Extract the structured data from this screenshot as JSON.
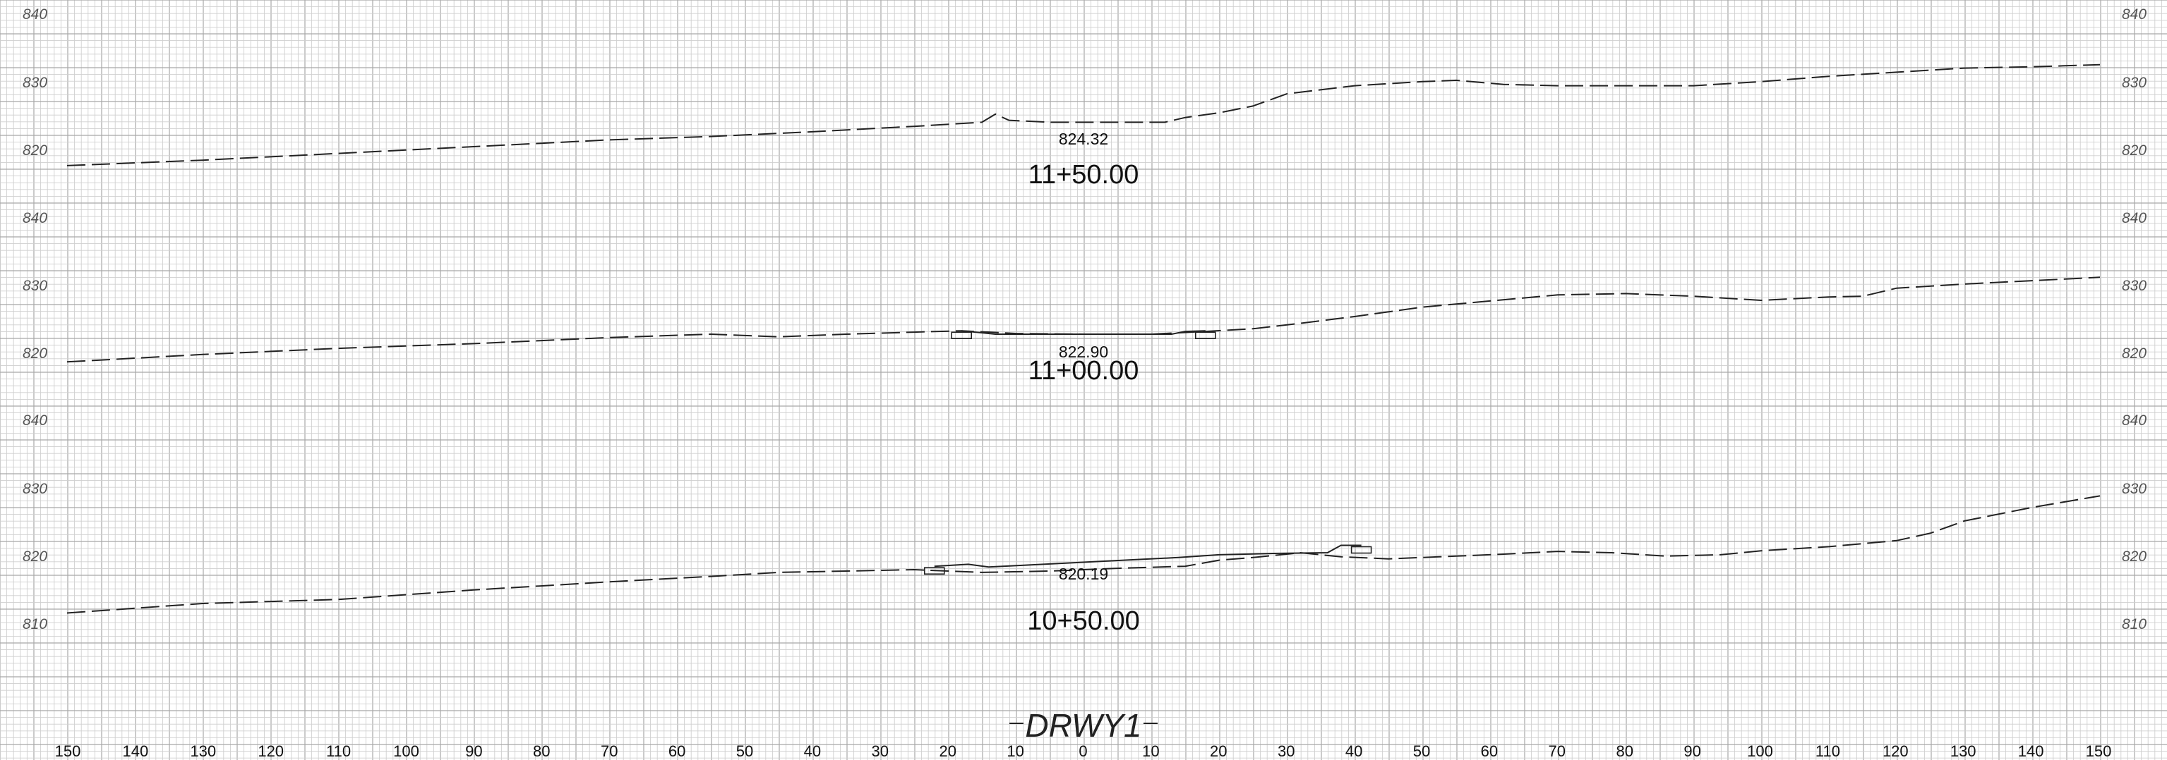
{
  "drawing": {
    "title": "DRWY1"
  },
  "offset_axis": {
    "labels": [
      "150",
      "140",
      "130",
      "120",
      "110",
      "100",
      "90",
      "80",
      "70",
      "60",
      "50",
      "40",
      "30",
      "20",
      "10",
      "0",
      "10",
      "20",
      "30",
      "40",
      "50",
      "60",
      "70",
      "80",
      "90",
      "100",
      "110",
      "120",
      "130",
      "140",
      "150"
    ]
  },
  "sections": [
    {
      "station": "11+50.00",
      "grade_elevation": "824.32",
      "elevation_labels": [
        "840",
        "830",
        "820"
      ],
      "ground_profile": [
        [
          -150,
          817.2
        ],
        [
          -130,
          818.0
        ],
        [
          -110,
          819.0
        ],
        [
          -90,
          820.0
        ],
        [
          -70,
          821.0
        ],
        [
          -55,
          821.5
        ],
        [
          -40,
          822.2
        ],
        [
          -25,
          823.0
        ],
        [
          -15,
          823.6
        ],
        [
          -13,
          824.8
        ],
        [
          -11,
          823.9
        ],
        [
          -5,
          823.6
        ],
        [
          5,
          823.6
        ],
        [
          12,
          823.6
        ],
        [
          15,
          824.3
        ],
        [
          20,
          825.0
        ],
        [
          25,
          826.0
        ],
        [
          30,
          827.8
        ],
        [
          40,
          829.0
        ],
        [
          50,
          829.6
        ],
        [
          55,
          829.8
        ],
        [
          62,
          829.2
        ],
        [
          70,
          829.0
        ],
        [
          80,
          829.0
        ],
        [
          90,
          829.0
        ],
        [
          100,
          829.6
        ],
        [
          110,
          830.4
        ],
        [
          120,
          831.0
        ],
        [
          130,
          831.6
        ],
        [
          140,
          831.8
        ],
        [
          150,
          832.1
        ]
      ],
      "design_profile": []
    },
    {
      "station": "11+00.00",
      "grade_elevation": "822.90",
      "elevation_labels": [
        "840",
        "830",
        "820"
      ],
      "ground_profile": [
        [
          -150,
          818.3
        ],
        [
          -130,
          819.4
        ],
        [
          -110,
          820.3
        ],
        [
          -90,
          821.0
        ],
        [
          -70,
          821.9
        ],
        [
          -55,
          822.4
        ],
        [
          -45,
          822.0
        ],
        [
          -35,
          822.4
        ],
        [
          -25,
          822.7
        ],
        [
          -18,
          822.9
        ],
        [
          -10,
          822.5
        ],
        [
          0,
          822.4
        ],
        [
          10,
          822.4
        ],
        [
          18,
          822.8
        ],
        [
          25,
          823.2
        ],
        [
          32,
          824.0
        ],
        [
          40,
          825.0
        ],
        [
          50,
          826.4
        ],
        [
          60,
          827.3
        ],
        [
          70,
          828.2
        ],
        [
          80,
          828.4
        ],
        [
          90,
          828.0
        ],
        [
          100,
          827.4
        ],
        [
          110,
          827.9
        ],
        [
          115,
          828.0
        ],
        [
          120,
          829.2
        ],
        [
          130,
          829.8
        ],
        [
          140,
          830.3
        ],
        [
          150,
          830.8
        ]
      ],
      "design_profile": [
        [
          -18,
          822.9
        ],
        [
          -15,
          822.6
        ],
        [
          -13,
          822.4
        ],
        [
          -8,
          822.4
        ],
        [
          0,
          822.4
        ],
        [
          8,
          822.4
        ],
        [
          13,
          822.4
        ],
        [
          15,
          822.8
        ],
        [
          18,
          822.9
        ]
      ]
    },
    {
      "station": "10+50.00",
      "grade_elevation": "820.19",
      "elevation_labels": [
        "840",
        "830",
        "820",
        "810"
      ],
      "ground_profile": [
        [
          -150,
          811.2
        ],
        [
          -130,
          812.6
        ],
        [
          -110,
          813.2
        ],
        [
          -90,
          814.6
        ],
        [
          -70,
          815.8
        ],
        [
          -55,
          816.6
        ],
        [
          -45,
          817.2
        ],
        [
          -35,
          817.4
        ],
        [
          -25,
          817.6
        ],
        [
          -15,
          817.2
        ],
        [
          -5,
          817.4
        ],
        [
          5,
          817.8
        ],
        [
          15,
          818.1
        ],
        [
          20,
          819.0
        ],
        [
          25,
          819.4
        ],
        [
          32,
          820.1
        ],
        [
          38,
          819.5
        ],
        [
          45,
          819.2
        ],
        [
          55,
          819.6
        ],
        [
          62,
          819.9
        ],
        [
          70,
          820.3
        ],
        [
          78,
          820.1
        ],
        [
          86,
          819.6
        ],
        [
          94,
          819.8
        ],
        [
          100,
          820.4
        ],
        [
          110,
          821.0
        ],
        [
          120,
          821.9
        ],
        [
          125,
          823.0
        ],
        [
          130,
          824.8
        ],
        [
          140,
          826.8
        ],
        [
          150,
          828.5
        ]
      ],
      "design_profile": [
        [
          -22,
          818.1
        ],
        [
          -17,
          818.4
        ],
        [
          -14,
          818.0
        ],
        [
          14,
          819.4
        ],
        [
          20,
          819.8
        ],
        [
          28,
          820.0
        ],
        [
          36,
          820.1
        ],
        [
          38,
          821.2
        ],
        [
          41,
          821.2
        ]
      ]
    }
  ]
}
